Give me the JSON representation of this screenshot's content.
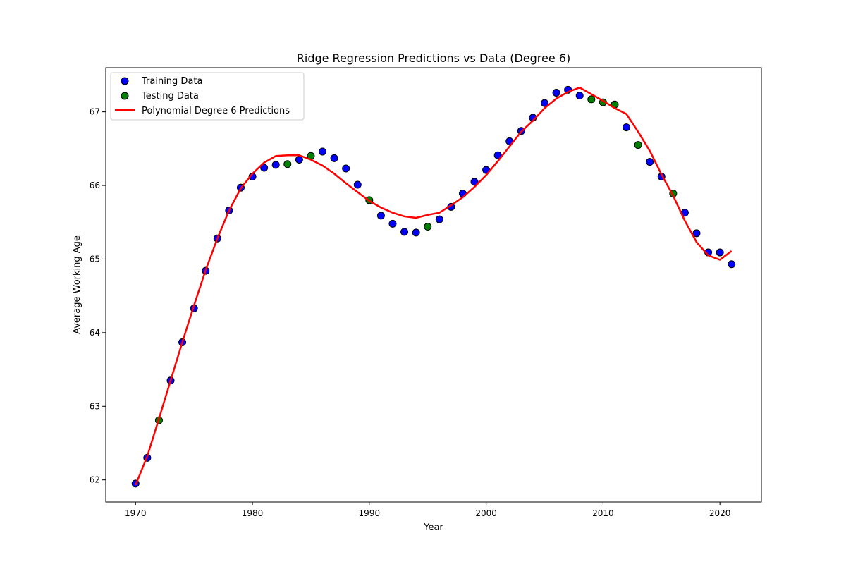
{
  "chart_data": {
    "type": "scatter",
    "title": "Ridge Regression Predictions vs Data (Degree 6)",
    "xlabel": "Year",
    "ylabel": "Average Working Age",
    "xlim": [
      1967.45,
      2023.55
    ],
    "ylim": [
      61.7,
      67.6
    ],
    "x_ticks": [
      1970,
      1980,
      1990,
      2000,
      2010,
      2020
    ],
    "y_ticks": [
      62,
      63,
      64,
      65,
      66,
      67
    ],
    "grid": false,
    "legend_position": "top-left",
    "series": [
      {
        "name": "Training Data",
        "kind": "scatter",
        "color": "#0000ff",
        "edge_color": "#000000",
        "x": [
          1970,
          1971,
          1973,
          1974,
          1975,
          1976,
          1977,
          1978,
          1979,
          1980,
          1981,
          1982,
          1984,
          1986,
          1987,
          1988,
          1989,
          1991,
          1992,
          1993,
          1994,
          1996,
          1997,
          1998,
          1999,
          2000,
          2001,
          2002,
          2003,
          2004,
          2005,
          2006,
          2007,
          2008,
          2012,
          2014,
          2015,
          2017,
          2018,
          2019,
          2020,
          2021
        ],
        "y": [
          61.95,
          62.3,
          63.35,
          63.87,
          64.33,
          64.84,
          65.28,
          65.66,
          65.97,
          66.12,
          66.24,
          66.28,
          66.35,
          66.46,
          66.37,
          66.23,
          66.01,
          65.59,
          65.48,
          65.37,
          65.36,
          65.54,
          65.71,
          65.89,
          66.05,
          66.21,
          66.41,
          66.6,
          66.74,
          66.92,
          67.12,
          67.26,
          67.3,
          67.22,
          66.79,
          66.32,
          66.12,
          65.63,
          65.35,
          65.09,
          65.09,
          64.93
        ]
      },
      {
        "name": "Testing Data",
        "kind": "scatter",
        "color": "#008000",
        "edge_color": "#000000",
        "x": [
          1972,
          1983,
          1985,
          1990,
          1995,
          2009,
          2010,
          2011,
          2013,
          2016
        ],
        "y": [
          62.81,
          66.29,
          66.4,
          65.8,
          65.44,
          67.17,
          67.13,
          67.1,
          66.55,
          65.89
        ]
      },
      {
        "name": "Polynomial Degree 6 Predictions",
        "kind": "line",
        "color": "#ff0000",
        "x": [
          1970,
          1971,
          1972,
          1973,
          1974,
          1975,
          1976,
          1977,
          1978,
          1979,
          1980,
          1981,
          1982,
          1983,
          1984,
          1985,
          1986,
          1987,
          1988,
          1989,
          1990,
          1991,
          1992,
          1993,
          1994,
          1995,
          1996,
          1997,
          1998,
          1999,
          2000,
          2001,
          2002,
          2003,
          2004,
          2005,
          2006,
          2007,
          2008,
          2009,
          2010,
          2011,
          2012,
          2013,
          2014,
          2015,
          2016,
          2017,
          2018,
          2019,
          2020,
          2021
        ],
        "y": [
          61.93,
          62.32,
          62.83,
          63.35,
          63.87,
          64.37,
          64.85,
          65.28,
          65.66,
          65.96,
          66.16,
          66.31,
          66.4,
          66.41,
          66.41,
          66.35,
          66.27,
          66.16,
          66.03,
          65.91,
          65.79,
          65.7,
          65.63,
          65.58,
          65.56,
          65.6,
          65.63,
          65.73,
          65.84,
          65.98,
          66.14,
          66.33,
          66.53,
          66.73,
          66.88,
          67.05,
          67.18,
          67.27,
          67.33,
          67.24,
          67.15,
          67.05,
          66.97,
          66.73,
          66.47,
          66.15,
          65.86,
          65.52,
          65.23,
          65.05,
          64.99,
          65.11
        ]
      }
    ]
  }
}
